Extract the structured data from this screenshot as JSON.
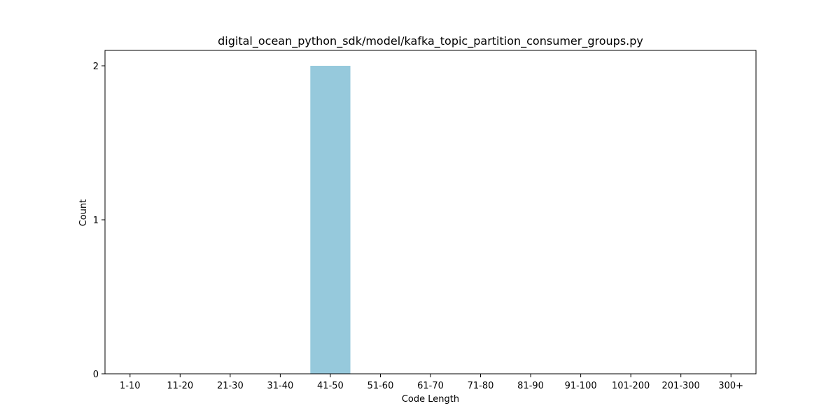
{
  "chart_data": {
    "type": "bar",
    "title": "digital_ocean_python_sdk/model/kafka_topic_partition_consumer_groups.py",
    "xlabel": "Code Length",
    "ylabel": "Count",
    "categories": [
      "1-10",
      "11-20",
      "21-30",
      "31-40",
      "41-50",
      "51-60",
      "61-70",
      "71-80",
      "81-90",
      "91-100",
      "101-200",
      "201-300",
      "300+"
    ],
    "values": [
      0,
      0,
      0,
      0,
      2,
      0,
      0,
      0,
      0,
      0,
      0,
      0,
      0
    ],
    "ylim": [
      0,
      2.1
    ],
    "yticks": [
      0,
      1,
      2
    ],
    "grid": false,
    "bar_color": "#96c9dc"
  }
}
